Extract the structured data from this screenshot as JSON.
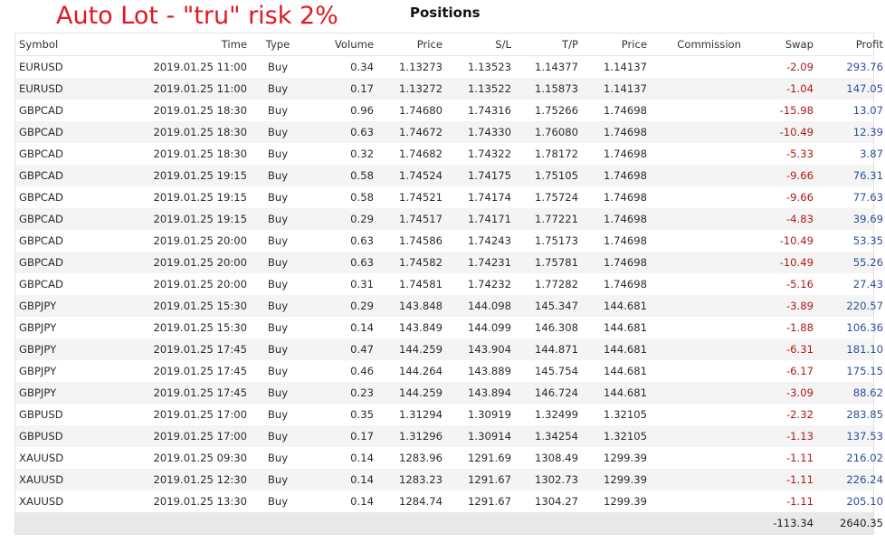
{
  "overlay_title": "Auto Lot - \"tru\" risk 2%",
  "panel_title": "Positions",
  "colors": {
    "overlay_red": "#e0191f",
    "swap_red": "#b01818",
    "profit_blue": "#2d4f9c"
  },
  "columns": [
    "Symbol",
    "Time",
    "Type",
    "Volume",
    "Price",
    "S/L",
    "T/P",
    "Price",
    "Commission",
    "Swap",
    "Profit"
  ],
  "rows": [
    {
      "symbol": "EURUSD",
      "time": "2019.01.25 11:00",
      "type": "Buy",
      "volume": "0.34",
      "price": "1.13273",
      "sl": "1.13523",
      "tp": "1.14377",
      "cur_price": "1.14137",
      "commission": "",
      "swap": "-2.09",
      "profit": "293.76"
    },
    {
      "symbol": "EURUSD",
      "time": "2019.01.25 11:00",
      "type": "Buy",
      "volume": "0.17",
      "price": "1.13272",
      "sl": "1.13522",
      "tp": "1.15873",
      "cur_price": "1.14137",
      "commission": "",
      "swap": "-1.04",
      "profit": "147.05"
    },
    {
      "symbol": "GBPCAD",
      "time": "2019.01.25 18:30",
      "type": "Buy",
      "volume": "0.96",
      "price": "1.74680",
      "sl": "1.74316",
      "tp": "1.75266",
      "cur_price": "1.74698",
      "commission": "",
      "swap": "-15.98",
      "profit": "13.07"
    },
    {
      "symbol": "GBPCAD",
      "time": "2019.01.25 18:30",
      "type": "Buy",
      "volume": "0.63",
      "price": "1.74672",
      "sl": "1.74330",
      "tp": "1.76080",
      "cur_price": "1.74698",
      "commission": "",
      "swap": "-10.49",
      "profit": "12.39"
    },
    {
      "symbol": "GBPCAD",
      "time": "2019.01.25 18:30",
      "type": "Buy",
      "volume": "0.32",
      "price": "1.74682",
      "sl": "1.74322",
      "tp": "1.78172",
      "cur_price": "1.74698",
      "commission": "",
      "swap": "-5.33",
      "profit": "3.87"
    },
    {
      "symbol": "GBPCAD",
      "time": "2019.01.25 19:15",
      "type": "Buy",
      "volume": "0.58",
      "price": "1.74524",
      "sl": "1.74175",
      "tp": "1.75105",
      "cur_price": "1.74698",
      "commission": "",
      "swap": "-9.66",
      "profit": "76.31"
    },
    {
      "symbol": "GBPCAD",
      "time": "2019.01.25 19:15",
      "type": "Buy",
      "volume": "0.58",
      "price": "1.74521",
      "sl": "1.74174",
      "tp": "1.75724",
      "cur_price": "1.74698",
      "commission": "",
      "swap": "-9.66",
      "profit": "77.63"
    },
    {
      "symbol": "GBPCAD",
      "time": "2019.01.25 19:15",
      "type": "Buy",
      "volume": "0.29",
      "price": "1.74517",
      "sl": "1.74171",
      "tp": "1.77221",
      "cur_price": "1.74698",
      "commission": "",
      "swap": "-4.83",
      "profit": "39.69"
    },
    {
      "symbol": "GBPCAD",
      "time": "2019.01.25 20:00",
      "type": "Buy",
      "volume": "0.63",
      "price": "1.74586",
      "sl": "1.74243",
      "tp": "1.75173",
      "cur_price": "1.74698",
      "commission": "",
      "swap": "-10.49",
      "profit": "53.35"
    },
    {
      "symbol": "GBPCAD",
      "time": "2019.01.25 20:00",
      "type": "Buy",
      "volume": "0.63",
      "price": "1.74582",
      "sl": "1.74231",
      "tp": "1.75781",
      "cur_price": "1.74698",
      "commission": "",
      "swap": "-10.49",
      "profit": "55.26"
    },
    {
      "symbol": "GBPCAD",
      "time": "2019.01.25 20:00",
      "type": "Buy",
      "volume": "0.31",
      "price": "1.74581",
      "sl": "1.74232",
      "tp": "1.77282",
      "cur_price": "1.74698",
      "commission": "",
      "swap": "-5.16",
      "profit": "27.43"
    },
    {
      "symbol": "GBPJPY",
      "time": "2019.01.25 15:30",
      "type": "Buy",
      "volume": "0.29",
      "price": "143.848",
      "sl": "144.098",
      "tp": "145.347",
      "cur_price": "144.681",
      "commission": "",
      "swap": "-3.89",
      "profit": "220.57"
    },
    {
      "symbol": "GBPJPY",
      "time": "2019.01.25 15:30",
      "type": "Buy",
      "volume": "0.14",
      "price": "143.849",
      "sl": "144.099",
      "tp": "146.308",
      "cur_price": "144.681",
      "commission": "",
      "swap": "-1.88",
      "profit": "106.36"
    },
    {
      "symbol": "GBPJPY",
      "time": "2019.01.25 17:45",
      "type": "Buy",
      "volume": "0.47",
      "price": "144.259",
      "sl": "143.904",
      "tp": "144.871",
      "cur_price": "144.681",
      "commission": "",
      "swap": "-6.31",
      "profit": "181.10"
    },
    {
      "symbol": "GBPJPY",
      "time": "2019.01.25 17:45",
      "type": "Buy",
      "volume": "0.46",
      "price": "144.264",
      "sl": "143.889",
      "tp": "145.754",
      "cur_price": "144.681",
      "commission": "",
      "swap": "-6.17",
      "profit": "175.15"
    },
    {
      "symbol": "GBPJPY",
      "time": "2019.01.25 17:45",
      "type": "Buy",
      "volume": "0.23",
      "price": "144.259",
      "sl": "143.894",
      "tp": "146.724",
      "cur_price": "144.681",
      "commission": "",
      "swap": "-3.09",
      "profit": "88.62"
    },
    {
      "symbol": "GBPUSD",
      "time": "2019.01.25 17:00",
      "type": "Buy",
      "volume": "0.35",
      "price": "1.31294",
      "sl": "1.30919",
      "tp": "1.32499",
      "cur_price": "1.32105",
      "commission": "",
      "swap": "-2.32",
      "profit": "283.85"
    },
    {
      "symbol": "GBPUSD",
      "time": "2019.01.25 17:00",
      "type": "Buy",
      "volume": "0.17",
      "price": "1.31296",
      "sl": "1.30914",
      "tp": "1.34254",
      "cur_price": "1.32105",
      "commission": "",
      "swap": "-1.13",
      "profit": "137.53"
    },
    {
      "symbol": "XAUUSD",
      "time": "2019.01.25 09:30",
      "type": "Buy",
      "volume": "0.14",
      "price": "1283.96",
      "sl": "1291.69",
      "tp": "1308.49",
      "cur_price": "1299.39",
      "commission": "",
      "swap": "-1.11",
      "profit": "216.02"
    },
    {
      "symbol": "XAUUSD",
      "time": "2019.01.25 12:30",
      "type": "Buy",
      "volume": "0.14",
      "price": "1283.23",
      "sl": "1291.67",
      "tp": "1302.73",
      "cur_price": "1299.39",
      "commission": "",
      "swap": "-1.11",
      "profit": "226.24"
    },
    {
      "symbol": "XAUUSD",
      "time": "2019.01.25 13:30",
      "type": "Buy",
      "volume": "0.14",
      "price": "1284.74",
      "sl": "1291.67",
      "tp": "1304.27",
      "cur_price": "1299.39",
      "commission": "",
      "swap": "-1.11",
      "profit": "205.10"
    }
  ],
  "totals": {
    "swap": "-113.34",
    "profit": "2640.35"
  }
}
